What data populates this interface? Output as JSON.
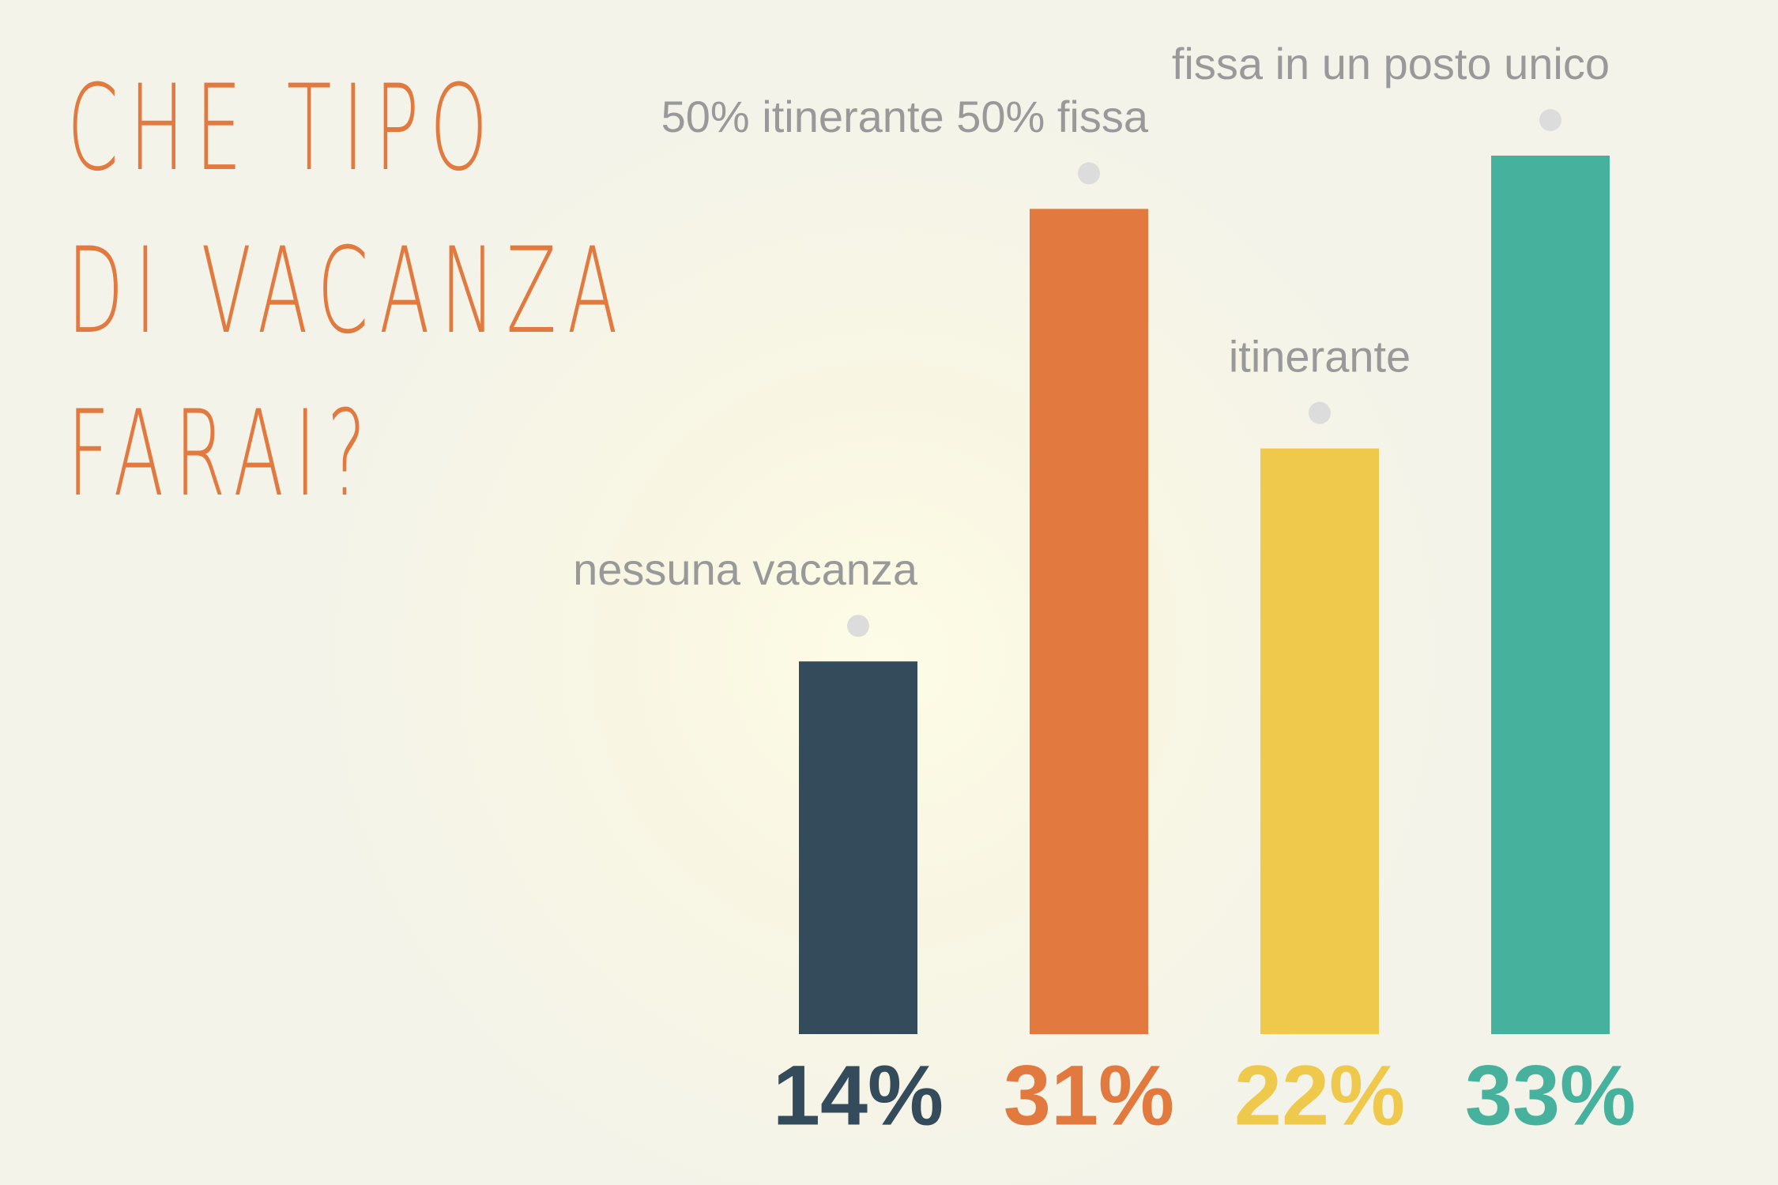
{
  "chart_data": {
    "type": "bar",
    "title": "CHE TIPO\nDI VACANZA\nFARAI?",
    "categories": [
      "nessuna vacanza",
      "50% itinerante 50% fissa",
      "itinerante",
      "fissa in un posto unico"
    ],
    "values": [
      14,
      31,
      22,
      33
    ],
    "value_labels": [
      "14%",
      "31%",
      "22%",
      "33%"
    ],
    "colors": [
      "#344b5b",
      "#e27a3f",
      "#efc94c",
      "#46b29d"
    ]
  }
}
